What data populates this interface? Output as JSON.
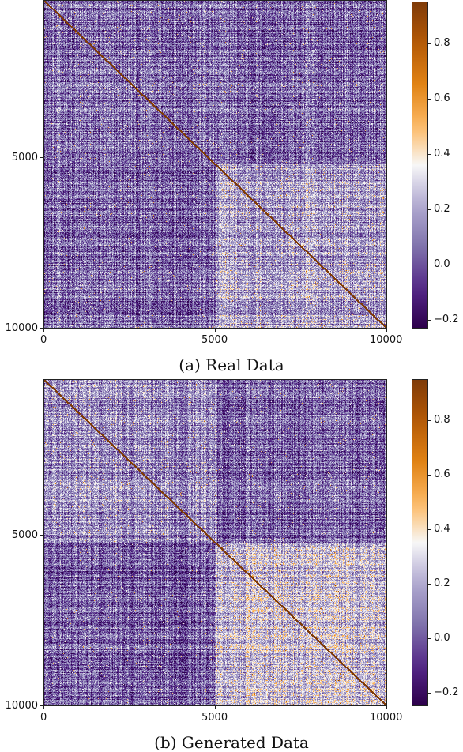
{
  "chart_data": [
    {
      "type": "heatmap",
      "caption": "(a) Real Data",
      "x_ticks": [
        "0",
        "5000",
        "10000"
      ],
      "y_ticks": [
        "5000",
        "10000"
      ],
      "xlim": [
        0,
        10000
      ],
      "ylim": [
        0,
        10000
      ],
      "colorbar": {
        "ticks": [
          "0.8",
          "0.6",
          "0.4",
          "0.2",
          "0.0",
          "−0.2"
        ],
        "tick_values": [
          0.8,
          0.6,
          0.4,
          0.2,
          0.0,
          -0.2
        ],
        "range": [
          -0.23,
          0.95
        ],
        "colormap": "PuOr_r"
      },
      "diagonal_value": 0.95,
      "block_split": 5000,
      "block_means": {
        "top_left": 0.05,
        "bottom_right": 0.18,
        "off_diagonal": 0.04
      }
    },
    {
      "type": "heatmap",
      "caption": "(b) Generated Data",
      "x_ticks": [
        "0",
        "5000",
        "10000"
      ],
      "y_ticks": [
        "5000",
        "10000"
      ],
      "xlim": [
        0,
        10000
      ],
      "ylim": [
        0,
        10000
      ],
      "colorbar": {
        "ticks": [
          "0.8",
          "0.6",
          "0.4",
          "0.2",
          "0.0",
          "−0.2"
        ],
        "tick_values": [
          0.8,
          0.6,
          0.4,
          0.2,
          0.0,
          -0.2
        ],
        "range": [
          -0.25,
          0.95
        ],
        "colormap": "PuOr_r"
      },
      "diagonal_value": 0.95,
      "block_split": 5000,
      "block_means": {
        "top_left": 0.12,
        "bottom_right": 0.24,
        "off_diagonal": 0.02
      }
    }
  ]
}
